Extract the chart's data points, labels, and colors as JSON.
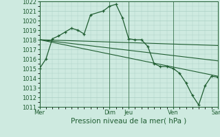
{
  "bg_color": "#ceeae0",
  "grid_color": "#aacfc4",
  "line_color": "#1e5c30",
  "xlabel": "Pression niveau de la mer( hPa )",
  "xlabel_fontsize": 7.5,
  "ylim": [
    1011,
    1022
  ],
  "ytick_fontsize": 6,
  "xtick_fontsize": 6,
  "yticks": [
    1011,
    1012,
    1013,
    1014,
    1015,
    1016,
    1017,
    1018,
    1019,
    1020,
    1021,
    1022
  ],
  "xlim": [
    0,
    14
  ],
  "xtick_labels": [
    "Mer",
    "Dim",
    "Jeu",
    "Ven",
    "Sam"
  ],
  "xtick_positions": [
    0,
    5.5,
    7.0,
    10.5,
    14.0
  ],
  "vlines": [
    0,
    5.5,
    7.0,
    10.5,
    14.0
  ],
  "series1": {
    "x": [
      0,
      0.5,
      1.0,
      1.5,
      2.0,
      2.5,
      3.0,
      3.5,
      4.0,
      5.0,
      5.5,
      6.0,
      6.5,
      7.0,
      7.5,
      8.0,
      8.5,
      9.0,
      9.5,
      10.0,
      10.5,
      11.0,
      11.5,
      12.0,
      12.5,
      13.0,
      13.5,
      14.0
    ],
    "y": [
      1015.0,
      1016.0,
      1018.1,
      1018.4,
      1018.8,
      1019.2,
      1019.0,
      1018.6,
      1020.6,
      1021.0,
      1021.5,
      1021.7,
      1020.3,
      1018.1,
      1018.0,
      1018.0,
      1017.3,
      1015.5,
      1015.2,
      1015.2,
      1015.0,
      1014.5,
      1013.5,
      1012.2,
      1011.2,
      1013.2,
      1014.2,
      1014.1
    ]
  },
  "series2": {
    "x": [
      0,
      14
    ],
    "y": [
      1018.0,
      1017.4
    ]
  },
  "series3": {
    "x": [
      0,
      14
    ],
    "y": [
      1018.0,
      1015.8
    ]
  },
  "series4": {
    "x": [
      0,
      14
    ],
    "y": [
      1018.0,
      1014.2
    ]
  }
}
